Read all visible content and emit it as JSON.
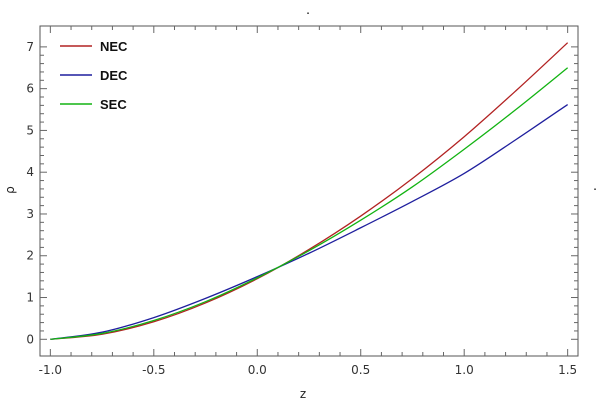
{
  "chart_data": {
    "type": "line",
    "title": ".",
    "side_note": ".",
    "xlabel": "z",
    "ylabel": "ρ",
    "xlim": [
      -1.05,
      1.55
    ],
    "ylim": [
      -0.4,
      7.5
    ],
    "x_ticks": [
      -1.0,
      -0.5,
      0.0,
      0.5,
      1.0,
      1.5
    ],
    "x_tick_labels": [
      "-1.0",
      "-0.5",
      "0.0",
      "0.5",
      "1.0",
      "1.5"
    ],
    "y_ticks": [
      0,
      1,
      2,
      3,
      4,
      5,
      6,
      7
    ],
    "y_tick_labels": [
      "0",
      "1",
      "2",
      "3",
      "4",
      "5",
      "6",
      "7"
    ],
    "legend_position": "top-left",
    "grid": false,
    "x": [
      -1.0,
      -0.75,
      -0.5,
      -0.25,
      0.0,
      0.25,
      0.5,
      0.75,
      1.0,
      1.25,
      1.5
    ],
    "series": [
      {
        "name": "NEC",
        "color": "#b22222",
        "values": [
          0.0,
          0.12,
          0.42,
          0.87,
          1.45,
          2.15,
          2.95,
          3.85,
          4.85,
          5.95,
          7.1
        ]
      },
      {
        "name": "DEC",
        "color": "#1f1f9e",
        "values": [
          0.0,
          0.17,
          0.52,
          0.98,
          1.5,
          2.06,
          2.67,
          3.3,
          3.97,
          4.78,
          5.62
        ]
      },
      {
        "name": "SEC",
        "color": "#12b312",
        "values": [
          0.0,
          0.14,
          0.45,
          0.9,
          1.47,
          2.12,
          2.85,
          3.65,
          4.55,
          5.5,
          6.5
        ]
      }
    ]
  }
}
